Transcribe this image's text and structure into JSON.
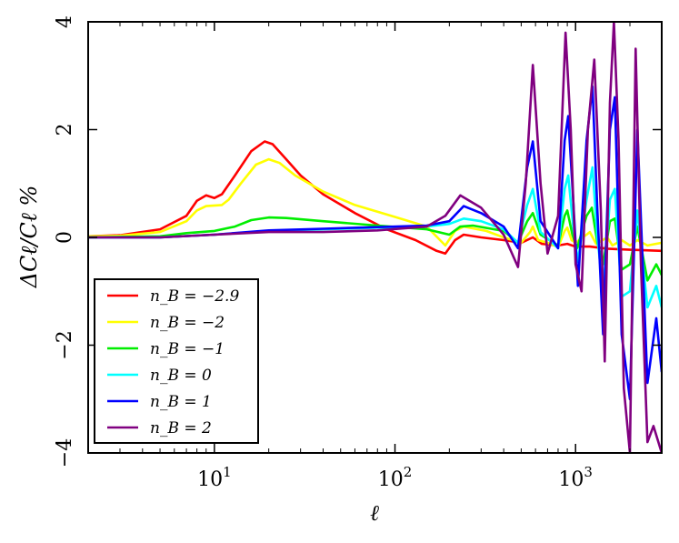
{
  "chart_data": {
    "type": "line",
    "xscale": "log",
    "xlim": [
      2,
      3000
    ],
    "ylim": [
      -4,
      4
    ],
    "xlabel": "ℓ",
    "ylabel": "ΔCℓ/Cℓ %",
    "x_ticks": [
      {
        "value": 10,
        "base": "10",
        "exp": "1"
      },
      {
        "value": 100,
        "base": "10",
        "exp": "2"
      },
      {
        "value": 1000,
        "base": "10",
        "exp": "3"
      }
    ],
    "y_ticks": [
      {
        "value": -4,
        "label": "−4"
      },
      {
        "value": -2,
        "label": "−2"
      },
      {
        "value": 0,
        "label": "0"
      },
      {
        "value": 2,
        "label": "2"
      },
      {
        "value": 4,
        "label": "4"
      }
    ],
    "legend_position": "lower-left",
    "series": [
      {
        "name": "n_B = -2.9",
        "label": "n_B = −2.9",
        "color": "#ff0000",
        "points": [
          [
            2,
            0.02
          ],
          [
            3,
            0.04
          ],
          [
            5,
            0.15
          ],
          [
            7,
            0.4
          ],
          [
            8,
            0.68
          ],
          [
            9,
            0.78
          ],
          [
            10,
            0.73
          ],
          [
            11,
            0.8
          ],
          [
            13,
            1.15
          ],
          [
            16,
            1.6
          ],
          [
            19,
            1.78
          ],
          [
            21,
            1.73
          ],
          [
            25,
            1.45
          ],
          [
            30,
            1.15
          ],
          [
            40,
            0.8
          ],
          [
            60,
            0.45
          ],
          [
            90,
            0.15
          ],
          [
            130,
            -0.05
          ],
          [
            170,
            -0.25
          ],
          [
            190,
            -0.3
          ],
          [
            215,
            -0.05
          ],
          [
            240,
            0.05
          ],
          [
            300,
            0.0
          ],
          [
            400,
            -0.05
          ],
          [
            500,
            -0.1
          ],
          [
            580,
            0.0
          ],
          [
            650,
            -0.12
          ],
          [
            800,
            -0.15
          ],
          [
            900,
            -0.12
          ],
          [
            1000,
            -0.17
          ],
          [
            1200,
            -0.17
          ],
          [
            1500,
            -0.21
          ],
          [
            2000,
            -0.23
          ],
          [
            3000,
            -0.25
          ]
        ]
      },
      {
        "name": "n_B = -2",
        "label": "n_B = −2",
        "color": "#ffff00",
        "points": [
          [
            2,
            0.02
          ],
          [
            3,
            0.03
          ],
          [
            5,
            0.1
          ],
          [
            7,
            0.3
          ],
          [
            8,
            0.5
          ],
          [
            9,
            0.58
          ],
          [
            11,
            0.6
          ],
          [
            12,
            0.7
          ],
          [
            14,
            1.0
          ],
          [
            17,
            1.35
          ],
          [
            20,
            1.45
          ],
          [
            23,
            1.38
          ],
          [
            28,
            1.15
          ],
          [
            40,
            0.85
          ],
          [
            60,
            0.6
          ],
          [
            100,
            0.38
          ],
          [
            150,
            0.2
          ],
          [
            190,
            -0.15
          ],
          [
            215,
            0.12
          ],
          [
            240,
            0.2
          ],
          [
            320,
            0.12
          ],
          [
            400,
            0.0
          ],
          [
            500,
            -0.1
          ],
          [
            560,
            0.1
          ],
          [
            580,
            0.2
          ],
          [
            620,
            -0.05
          ],
          [
            700,
            -0.1
          ],
          [
            800,
            -0.18
          ],
          [
            870,
            0.12
          ],
          [
            900,
            0.18
          ],
          [
            950,
            -0.05
          ],
          [
            1000,
            -0.1
          ],
          [
            1150,
            0.05
          ],
          [
            1200,
            0.1
          ],
          [
            1300,
            -0.12
          ],
          [
            1500,
            0.0
          ],
          [
            1600,
            -0.15
          ],
          [
            1800,
            -0.05
          ],
          [
            2000,
            -0.15
          ],
          [
            2200,
            -0.05
          ],
          [
            2500,
            -0.15
          ],
          [
            3000,
            -0.1
          ]
        ]
      },
      {
        "name": "n_B = -1",
        "label": "n_B = −1",
        "color": "#00ee00",
        "points": [
          [
            2,
            0.0
          ],
          [
            5,
            0.02
          ],
          [
            7,
            0.08
          ],
          [
            10,
            0.12
          ],
          [
            13,
            0.2
          ],
          [
            16,
            0.32
          ],
          [
            20,
            0.37
          ],
          [
            25,
            0.36
          ],
          [
            40,
            0.3
          ],
          [
            80,
            0.22
          ],
          [
            150,
            0.15
          ],
          [
            200,
            0.05
          ],
          [
            230,
            0.2
          ],
          [
            270,
            0.22
          ],
          [
            400,
            0.12
          ],
          [
            480,
            -0.1
          ],
          [
            540,
            0.3
          ],
          [
            580,
            0.45
          ],
          [
            640,
            0.05
          ],
          [
            800,
            -0.15
          ],
          [
            870,
            0.4
          ],
          [
            900,
            0.5
          ],
          [
            960,
            0.05
          ],
          [
            1020,
            -0.2
          ],
          [
            1150,
            0.4
          ],
          [
            1230,
            0.55
          ],
          [
            1320,
            -0.1
          ],
          [
            1420,
            -0.5
          ],
          [
            1550,
            0.3
          ],
          [
            1650,
            0.35
          ],
          [
            1800,
            -0.6
          ],
          [
            2000,
            -0.5
          ],
          [
            2200,
            0.2
          ],
          [
            2500,
            -0.8
          ],
          [
            2800,
            -0.5
          ],
          [
            3000,
            -0.7
          ]
        ]
      },
      {
        "name": "n_B = 0",
        "label": "n_B = 0",
        "color": "#00ffff",
        "points": [
          [
            2,
            0.0
          ],
          [
            5,
            0.0
          ],
          [
            10,
            0.05
          ],
          [
            20,
            0.12
          ],
          [
            40,
            0.15
          ],
          [
            80,
            0.18
          ],
          [
            150,
            0.2
          ],
          [
            200,
            0.25
          ],
          [
            240,
            0.35
          ],
          [
            300,
            0.3
          ],
          [
            400,
            0.15
          ],
          [
            480,
            -0.1
          ],
          [
            540,
            0.6
          ],
          [
            580,
            0.9
          ],
          [
            640,
            0.1
          ],
          [
            800,
            -0.2
          ],
          [
            870,
            0.9
          ],
          [
            910,
            1.15
          ],
          [
            970,
            0.2
          ],
          [
            1030,
            -0.45
          ],
          [
            1150,
            0.7
          ],
          [
            1240,
            1.3
          ],
          [
            1320,
            0.0
          ],
          [
            1420,
            -1.0
          ],
          [
            1550,
            0.7
          ],
          [
            1650,
            0.9
          ],
          [
            1800,
            -1.1
          ],
          [
            2000,
            -1.0
          ],
          [
            2200,
            0.5
          ],
          [
            2500,
            -1.3
          ],
          [
            2800,
            -0.9
          ],
          [
            3000,
            -1.3
          ]
        ]
      },
      {
        "name": "n_B = 1",
        "label": "n_B = 1",
        "color": "#0000ff",
        "points": [
          [
            2,
            0.0
          ],
          [
            5,
            0.0
          ],
          [
            10,
            0.05
          ],
          [
            20,
            0.13
          ],
          [
            40,
            0.16
          ],
          [
            80,
            0.19
          ],
          [
            150,
            0.22
          ],
          [
            200,
            0.3
          ],
          [
            240,
            0.58
          ],
          [
            300,
            0.45
          ],
          [
            400,
            0.2
          ],
          [
            480,
            -0.2
          ],
          [
            540,
            1.3
          ],
          [
            580,
            1.78
          ],
          [
            640,
            0.3
          ],
          [
            800,
            -0.2
          ],
          [
            870,
            1.8
          ],
          [
            910,
            2.25
          ],
          [
            970,
            0.7
          ],
          [
            1030,
            -0.9
          ],
          [
            1150,
            1.8
          ],
          [
            1240,
            2.8
          ],
          [
            1320,
            0.5
          ],
          [
            1420,
            -1.8
          ],
          [
            1550,
            2.0
          ],
          [
            1650,
            2.6
          ],
          [
            1800,
            -1.8
          ],
          [
            2000,
            -3.0
          ],
          [
            2200,
            2.0
          ],
          [
            2500,
            -2.7
          ],
          [
            2800,
            -1.5
          ],
          [
            3000,
            -2.5
          ]
        ]
      },
      {
        "name": "n_B = 2",
        "label": "n_B = 2",
        "color": "#800080",
        "points": [
          [
            2,
            0.0
          ],
          [
            5,
            0.0
          ],
          [
            10,
            0.05
          ],
          [
            20,
            0.1
          ],
          [
            40,
            0.1
          ],
          [
            80,
            0.13
          ],
          [
            150,
            0.2
          ],
          [
            190,
            0.4
          ],
          [
            230,
            0.78
          ],
          [
            300,
            0.55
          ],
          [
            400,
            0.05
          ],
          [
            480,
            -0.55
          ],
          [
            530,
            1.0
          ],
          [
            580,
            3.2
          ],
          [
            640,
            1.0
          ],
          [
            700,
            -0.3
          ],
          [
            800,
            0.4
          ],
          [
            880,
            3.8
          ],
          [
            940,
            2.0
          ],
          [
            1000,
            -0.5
          ],
          [
            1080,
            -1.0
          ],
          [
            1170,
            2.0
          ],
          [
            1270,
            3.3
          ],
          [
            1380,
            0.5
          ],
          [
            1450,
            -2.3
          ],
          [
            1550,
            2.5
          ],
          [
            1630,
            4.0
          ],
          [
            1730,
            1.8
          ],
          [
            1850,
            -2.8
          ],
          [
            2000,
            -4.0
          ],
          [
            2150,
            3.5
          ],
          [
            2300,
            -0.5
          ],
          [
            2500,
            -3.8
          ],
          [
            2700,
            -3.5
          ],
          [
            3000,
            -4.0
          ]
        ]
      }
    ]
  }
}
